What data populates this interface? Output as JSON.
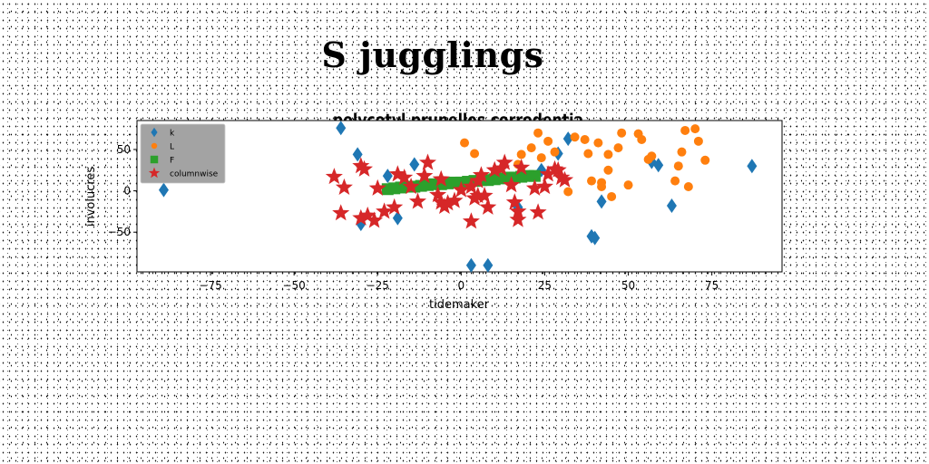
{
  "page": {
    "title": "S jugglings"
  },
  "chart_data": {
    "type": "scatter",
    "title": "polycotyl prunelles corrodentia",
    "xlabel": "tidemaker",
    "ylabel": "involucres",
    "xlim": [
      -97,
      96
    ],
    "ylim": [
      -98,
      85
    ],
    "xticks": [
      -75,
      -50,
      -25,
      0,
      25,
      50,
      75
    ],
    "yticks": [
      50,
      0,
      -50
    ],
    "xtick_labels": [
      "−75",
      "−50",
      "−25",
      "0",
      "25",
      "50",
      "75"
    ],
    "ytick_labels": [
      "50",
      "0",
      "−50"
    ],
    "grid": false,
    "legend_position": "top-left",
    "series": [
      {
        "name": "k",
        "marker": "diamond",
        "color": "#1f77b4",
        "points": [
          [
            -89,
            1
          ],
          [
            -36,
            76
          ],
          [
            -31,
            44
          ],
          [
            -30,
            -40
          ],
          [
            -22,
            18
          ],
          [
            -19,
            -33
          ],
          [
            -14,
            32
          ],
          [
            3,
            -90
          ],
          [
            8,
            -90
          ],
          [
            17,
            -20
          ],
          [
            24,
            25
          ],
          [
            29,
            45
          ],
          [
            32,
            63
          ],
          [
            39,
            -55
          ],
          [
            40,
            -57
          ],
          [
            42,
            -13
          ],
          [
            57,
            35
          ],
          [
            59,
            31
          ],
          [
            63,
            -18
          ],
          [
            87,
            30
          ]
        ]
      },
      {
        "name": "L",
        "marker": "circle",
        "color": "#ff7f0e",
        "points": [
          [
            1,
            58
          ],
          [
            4,
            45
          ],
          [
            17,
            32
          ],
          [
            18,
            44
          ],
          [
            21,
            52
          ],
          [
            23,
            70
          ],
          [
            24,
            40
          ],
          [
            26,
            60
          ],
          [
            28,
            47
          ],
          [
            32,
            -1
          ],
          [
            34,
            65
          ],
          [
            37,
            62
          ],
          [
            38,
            45
          ],
          [
            39,
            12
          ],
          [
            41,
            58
          ],
          [
            42,
            10
          ],
          [
            42,
            5
          ],
          [
            44,
            44
          ],
          [
            44,
            25
          ],
          [
            45,
            -7
          ],
          [
            47,
            52
          ],
          [
            48,
            70
          ],
          [
            50,
            7
          ],
          [
            53,
            69
          ],
          [
            54,
            62
          ],
          [
            56,
            38
          ],
          [
            57,
            42
          ],
          [
            64,
            12
          ],
          [
            65,
            30
          ],
          [
            66,
            47
          ],
          [
            67,
            73
          ],
          [
            68,
            5
          ],
          [
            70,
            75
          ],
          [
            71,
            60
          ],
          [
            73,
            37
          ]
        ]
      },
      {
        "name": "F",
        "marker": "square",
        "color": "#2ca02c",
        "points": [
          [
            -22,
            2
          ],
          [
            -20,
            3
          ],
          [
            -18,
            4
          ],
          [
            -16,
            5
          ],
          [
            -14,
            5
          ],
          [
            -12,
            6
          ],
          [
            -10,
            7
          ],
          [
            -8,
            8
          ],
          [
            -6,
            8
          ],
          [
            -4,
            9
          ],
          [
            -2,
            10
          ],
          [
            0,
            10
          ],
          [
            2,
            11
          ],
          [
            4,
            12
          ],
          [
            6,
            13
          ],
          [
            8,
            13
          ],
          [
            10,
            14
          ],
          [
            12,
            15
          ],
          [
            14,
            16
          ],
          [
            16,
            16
          ],
          [
            18,
            17
          ],
          [
            20,
            18
          ],
          [
            22,
            18
          ]
        ]
      },
      {
        "name": "columnwise",
        "marker": "star",
        "color": "#d62728",
        "points": [
          [
            -38,
            17
          ],
          [
            -36,
            -27
          ],
          [
            -35,
            4
          ],
          [
            -30,
            30
          ],
          [
            -29,
            26
          ],
          [
            -30,
            -33
          ],
          [
            -28,
            -30
          ],
          [
            -26,
            -36
          ],
          [
            -25,
            3
          ],
          [
            -23,
            -25
          ],
          [
            -20,
            -20
          ],
          [
            -19,
            20
          ],
          [
            -17,
            16
          ],
          [
            -15,
            5
          ],
          [
            -13,
            -13
          ],
          [
            -11,
            18
          ],
          [
            -10,
            34
          ],
          [
            -7,
            -5
          ],
          [
            -6,
            -14
          ],
          [
            -6,
            14
          ],
          [
            -5,
            -19
          ],
          [
            -4,
            -15
          ],
          [
            -2,
            -12
          ],
          [
            0,
            1
          ],
          [
            3,
            -37
          ],
          [
            3,
            5
          ],
          [
            4,
            -9
          ],
          [
            5,
            -6
          ],
          [
            5,
            12
          ],
          [
            6,
            19
          ],
          [
            7,
            -6
          ],
          [
            8,
            -20
          ],
          [
            10,
            25
          ],
          [
            12,
            27
          ],
          [
            13,
            34
          ],
          [
            15,
            7
          ],
          [
            16,
            -14
          ],
          [
            17,
            -35
          ],
          [
            17,
            -25
          ],
          [
            18,
            28
          ],
          [
            22,
            3
          ],
          [
            23,
            -26
          ],
          [
            25,
            5
          ],
          [
            26,
            20
          ],
          [
            28,
            26
          ],
          [
            29,
            25
          ],
          [
            30,
            16
          ],
          [
            31,
            13
          ]
        ]
      }
    ]
  }
}
